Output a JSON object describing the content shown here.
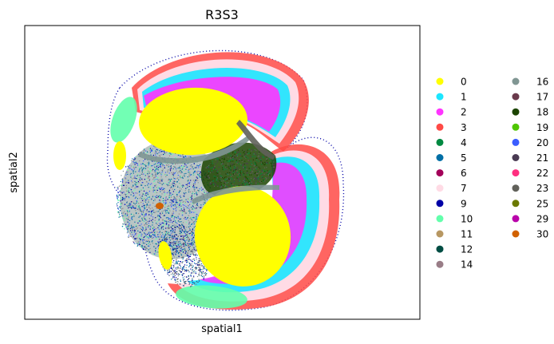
{
  "chart_data": {
    "type": "scatter",
    "title": "R3S3",
    "xlabel": "spatial1",
    "ylabel": "spatial2",
    "xticks": [],
    "yticks": [],
    "grid": false,
    "legend_placement": "right",
    "legend_columns": 2,
    "legend": [
      {
        "label": "0",
        "color": "#ffff00"
      },
      {
        "label": "1",
        "color": "#1ce6ff"
      },
      {
        "label": "2",
        "color": "#ff34ff"
      },
      {
        "label": "3",
        "color": "#ff4a46"
      },
      {
        "label": "4",
        "color": "#008941"
      },
      {
        "label": "5",
        "color": "#006fa6"
      },
      {
        "label": "6",
        "color": "#a30059"
      },
      {
        "label": "7",
        "color": "#ffdbe5"
      },
      {
        "label": "9",
        "color": "#0000a6"
      },
      {
        "label": "10",
        "color": "#63ffac"
      },
      {
        "label": "11",
        "color": "#b79762"
      },
      {
        "label": "12",
        "color": "#004d43"
      },
      {
        "label": "14",
        "color": "#997d87"
      },
      {
        "label": "16",
        "color": "#809693"
      },
      {
        "label": "17",
        "color": "#6a3a4c"
      },
      {
        "label": "18",
        "color": "#1b4400"
      },
      {
        "label": "19",
        "color": "#4fc601"
      },
      {
        "label": "20",
        "color": "#3b5dff"
      },
      {
        "label": "21",
        "color": "#4a3b53"
      },
      {
        "label": "22",
        "color": "#ff2f80"
      },
      {
        "label": "23",
        "color": "#61615a"
      },
      {
        "label": "25",
        "color": "#6b7900"
      },
      {
        "label": "29",
        "color": "#b903aa"
      },
      {
        "label": "30",
        "color": "#d16100"
      }
    ]
  }
}
